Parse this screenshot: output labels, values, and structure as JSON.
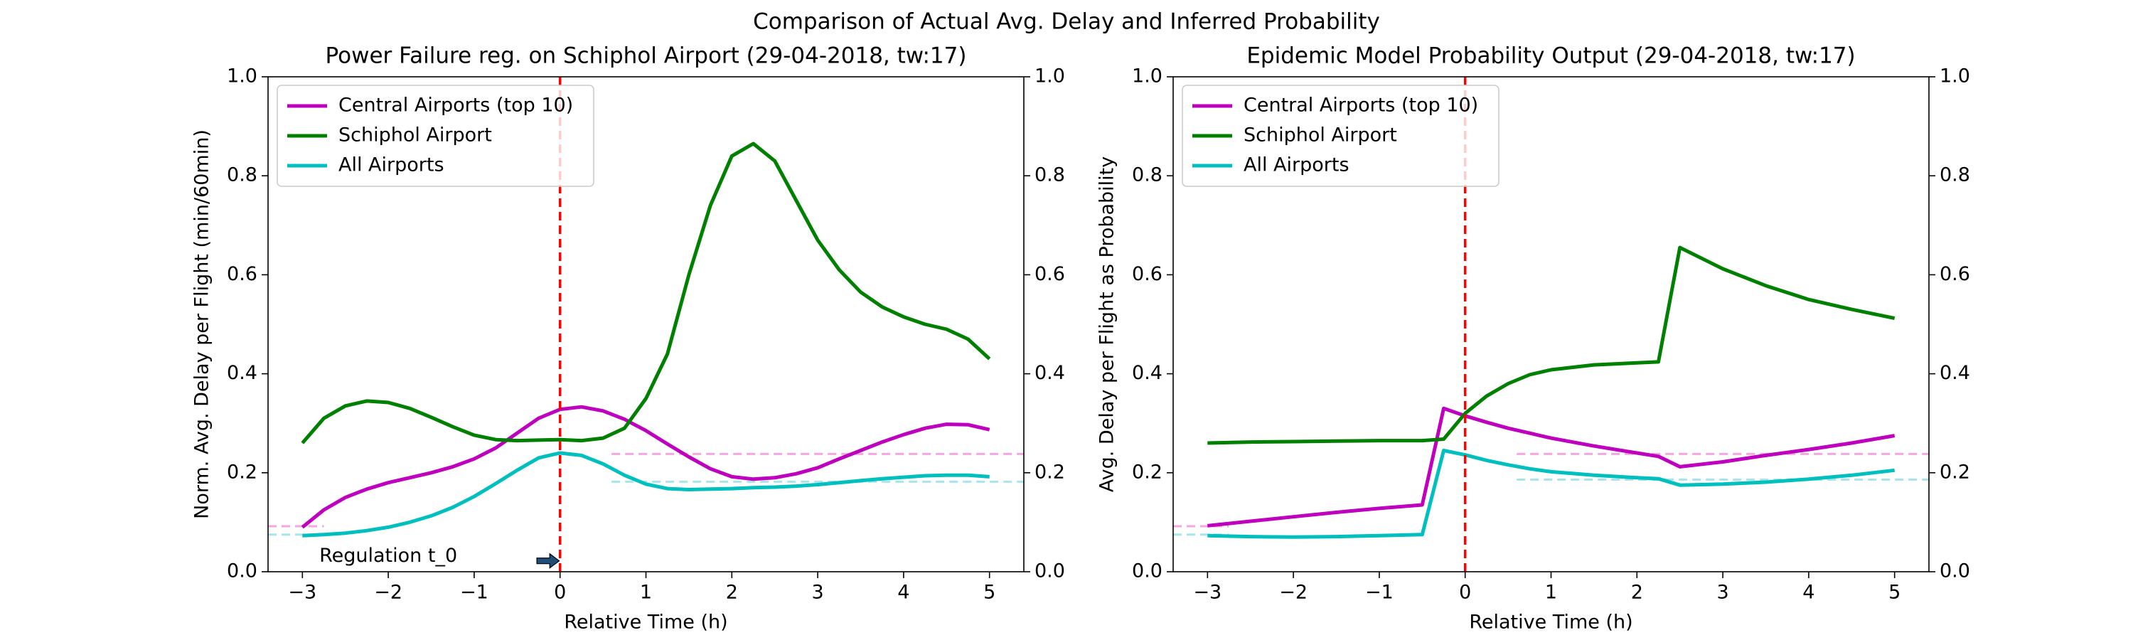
{
  "suptitle": "Comparison of Actual Avg. Delay and Inferred Probability",
  "chart_data": [
    {
      "type": "line",
      "title": "Power Failure reg. on Schiphol Airport (29-04-2018, tw:17)",
      "xlabel": "Relative Time (h)",
      "ylabel": "Norm. Avg. Delay per Flight (min/60min)",
      "x": [
        -3,
        -2.75,
        -2.5,
        -2.25,
        -2,
        -1.75,
        -1.5,
        -1.25,
        -1,
        -0.75,
        -0.5,
        -0.25,
        0,
        0.25,
        0.5,
        0.75,
        1,
        1.25,
        1.5,
        1.75,
        2,
        2.25,
        2.5,
        2.75,
        3,
        3.25,
        3.5,
        3.75,
        4,
        4.25,
        4.5,
        4.75,
        5
      ],
      "series": [
        {
          "name": "Central Airports (top 10)",
          "color": "#bf00bf",
          "values": [
            0.09,
            0.125,
            0.15,
            0.167,
            0.18,
            0.19,
            0.2,
            0.212,
            0.228,
            0.25,
            0.28,
            0.31,
            0.328,
            0.333,
            0.325,
            0.308,
            0.285,
            0.258,
            0.232,
            0.208,
            0.192,
            0.187,
            0.19,
            0.198,
            0.21,
            0.228,
            0.245,
            0.262,
            0.277,
            0.29,
            0.298,
            0.297,
            0.287
          ]
        },
        {
          "name": "Schiphol Airport",
          "color": "#008000",
          "values": [
            0.26,
            0.31,
            0.335,
            0.345,
            0.342,
            0.33,
            0.312,
            0.293,
            0.276,
            0.267,
            0.265,
            0.266,
            0.267,
            0.265,
            0.27,
            0.29,
            0.35,
            0.44,
            0.6,
            0.74,
            0.84,
            0.865,
            0.83,
            0.75,
            0.67,
            0.61,
            0.565,
            0.535,
            0.515,
            0.5,
            0.49,
            0.47,
            0.43
          ]
        },
        {
          "name": "All Airports",
          "color": "#00bfbf",
          "values": [
            0.073,
            0.075,
            0.078,
            0.083,
            0.09,
            0.1,
            0.113,
            0.13,
            0.152,
            0.178,
            0.205,
            0.23,
            0.24,
            0.235,
            0.218,
            0.195,
            0.177,
            0.168,
            0.166,
            0.167,
            0.168,
            0.17,
            0.171,
            0.173,
            0.176,
            0.18,
            0.184,
            0.188,
            0.191,
            0.194,
            0.195,
            0.195,
            0.192
          ]
        }
      ],
      "baselines": [
        {
          "color": "#f4a6e0",
          "y": 0.092,
          "x": [
            -3.4,
            -2.75
          ]
        },
        {
          "color": "#f4a6e0",
          "y": 0.238,
          "x": [
            0.6,
            5.4
          ]
        },
        {
          "color": "#a6e6ea",
          "y": 0.075,
          "x": [
            -3.4,
            -2.75
          ]
        },
        {
          "color": "#a6e6ea",
          "y": 0.182,
          "x": [
            0.6,
            5.4
          ]
        }
      ],
      "vline": {
        "x": 0,
        "color": "#ff0000"
      },
      "annotation": "Regulation t_0",
      "xlim": [
        -3.4,
        5.4
      ],
      "ylim": [
        0,
        1
      ],
      "y2lim": [
        0,
        1
      ],
      "xticks": [
        {
          "value": -3,
          "label": "−3"
        },
        {
          "value": -2,
          "label": "−2"
        },
        {
          "value": -1,
          "label": "−1"
        },
        0,
        1,
        2,
        3,
        4,
        5
      ],
      "yticks": [
        {
          "value": 0,
          "label": "0.0"
        },
        0.2,
        0.4,
        0.6,
        0.8,
        {
          "value": 1,
          "label": "1.0"
        }
      ],
      "y2ticks": [
        {
          "value": 0,
          "label": "0.0"
        },
        0.2,
        0.4,
        0.6,
        0.8,
        {
          "value": 1,
          "label": "1.0"
        }
      ],
      "legend": "upper left"
    },
    {
      "type": "line",
      "title": "Epidemic Model Probability Output (29-04-2018, tw:17)",
      "xlabel": "Relative Time (h)",
      "ylabel": "Avg. Delay per Flight as Probability",
      "x": [
        -3,
        -2.5,
        -2,
        -1.5,
        -1,
        -0.5,
        -0.25,
        0,
        0.25,
        0.5,
        0.75,
        1,
        1.5,
        2,
        2.25,
        2.5,
        3,
        3.5,
        4,
        4.5,
        5
      ],
      "series": [
        {
          "name": "Central Airports (top 10)",
          "color": "#bf00bf",
          "values": [
            0.093,
            0.102,
            0.111,
            0.12,
            0.128,
            0.135,
            0.33,
            0.315,
            0.302,
            0.29,
            0.28,
            0.27,
            0.254,
            0.24,
            0.233,
            0.212,
            0.222,
            0.235,
            0.247,
            0.26,
            0.275
          ]
        },
        {
          "name": "Schiphol Airport",
          "color": "#008000",
          "values": [
            0.26,
            0.262,
            0.263,
            0.264,
            0.265,
            0.265,
            0.268,
            0.32,
            0.355,
            0.38,
            0.398,
            0.408,
            0.418,
            0.422,
            0.424,
            0.655,
            0.612,
            0.578,
            0.55,
            0.53,
            0.512
          ]
        },
        {
          "name": "All Airports",
          "color": "#00bfbf",
          "values": [
            0.073,
            0.071,
            0.07,
            0.071,
            0.073,
            0.075,
            0.245,
            0.236,
            0.225,
            0.216,
            0.208,
            0.202,
            0.195,
            0.19,
            0.188,
            0.175,
            0.177,
            0.181,
            0.187,
            0.195,
            0.205
          ]
        }
      ],
      "baselines": [
        {
          "color": "#f4a6e0",
          "y": 0.092,
          "x": [
            -3.4,
            -2.75
          ]
        },
        {
          "color": "#f4a6e0",
          "y": 0.238,
          "x": [
            0.6,
            5.4
          ]
        },
        {
          "color": "#a6e6ea",
          "y": 0.075,
          "x": [
            -3.4,
            -2.75
          ]
        },
        {
          "color": "#a6e6ea",
          "y": 0.186,
          "x": [
            0.6,
            5.4
          ]
        }
      ],
      "vline": {
        "x": 0,
        "color": "#ff0000"
      },
      "xlim": [
        -3.4,
        5.4
      ],
      "ylim": [
        0,
        1
      ],
      "y2lim": [
        0,
        1
      ],
      "xticks": [
        {
          "value": -3,
          "label": "−3"
        },
        {
          "value": -2,
          "label": "−2"
        },
        {
          "value": -1,
          "label": "−1"
        },
        0,
        1,
        2,
        3,
        4,
        5
      ],
      "yticks": [
        {
          "value": 0,
          "label": "0.0"
        },
        0.2,
        0.4,
        0.6,
        0.8,
        {
          "value": 1,
          "label": "1.0"
        }
      ],
      "y2ticks": [
        {
          "value": 0,
          "label": "0.0"
        },
        0.2,
        0.4,
        0.6,
        0.8,
        {
          "value": 1,
          "label": "1.0"
        }
      ],
      "legend": "upper left"
    }
  ]
}
